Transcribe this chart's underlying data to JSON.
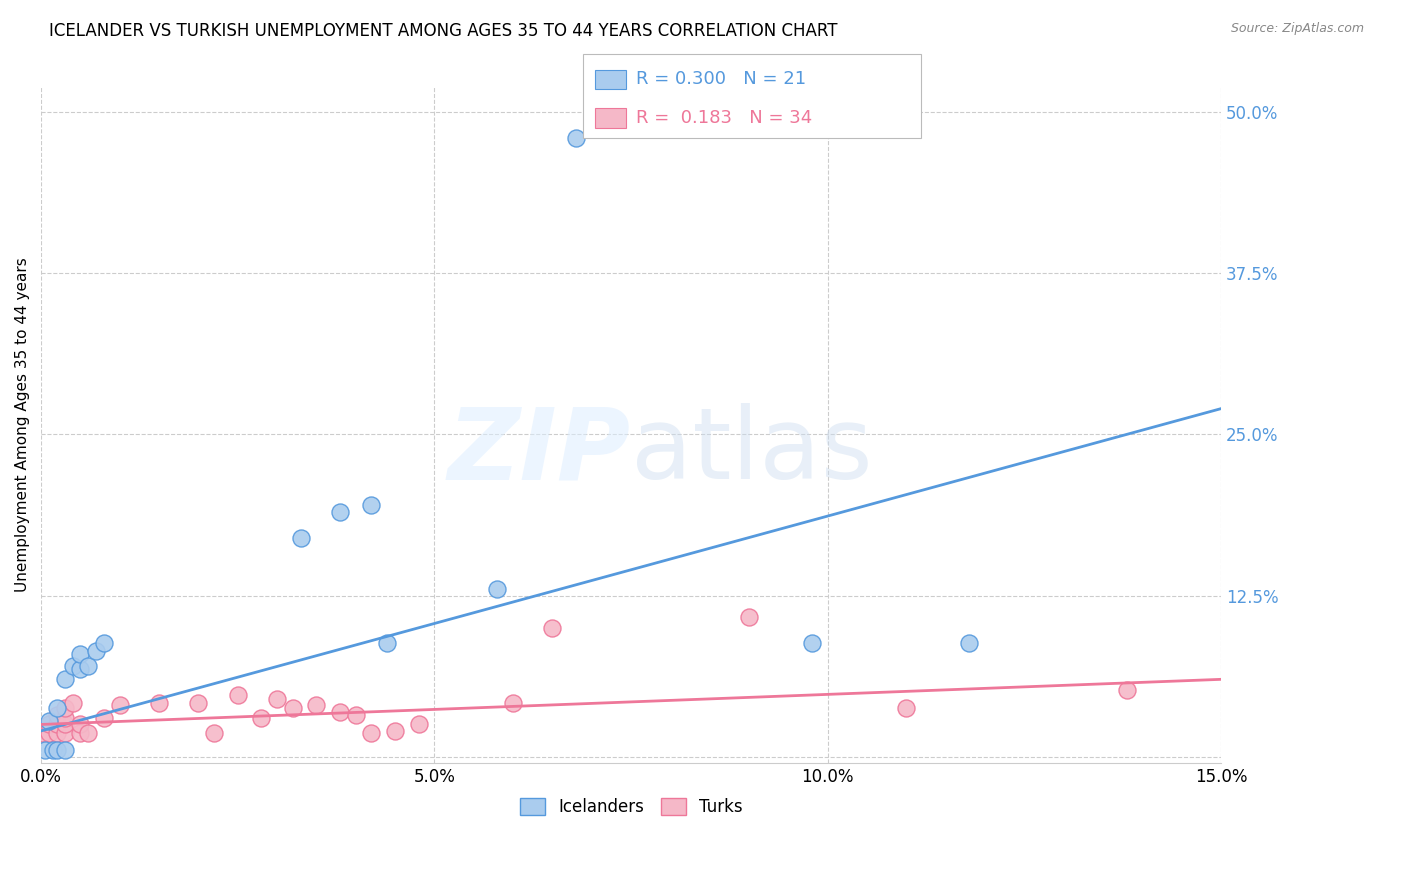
{
  "title": "ICELANDER VS TURKISH UNEMPLOYMENT AMONG AGES 35 TO 44 YEARS CORRELATION CHART",
  "source": "Source: ZipAtlas.com",
  "ylabel": "Unemployment Among Ages 35 to 44 years",
  "xlim": [
    0,
    0.15
  ],
  "ylim": [
    -0.005,
    0.52
  ],
  "yticks": [
    0.0,
    0.125,
    0.25,
    0.375,
    0.5
  ],
  "ytick_labels": [
    "",
    "12.5%",
    "25.0%",
    "37.5%",
    "50.0%"
  ],
  "xticks": [
    0.0,
    0.05,
    0.1,
    0.15
  ],
  "xtick_labels": [
    "0.0%",
    "5.0%",
    "10.0%",
    "15.0%"
  ],
  "icelanders_x": [
    0.0005,
    0.001,
    0.0015,
    0.002,
    0.002,
    0.003,
    0.003,
    0.004,
    0.005,
    0.005,
    0.006,
    0.007,
    0.008,
    0.033,
    0.038,
    0.042,
    0.044,
    0.058,
    0.068,
    0.098,
    0.118
  ],
  "icelanders_y": [
    0.005,
    0.028,
    0.005,
    0.005,
    0.038,
    0.06,
    0.005,
    0.07,
    0.068,
    0.08,
    0.07,
    0.082,
    0.088,
    0.17,
    0.19,
    0.195,
    0.088,
    0.13,
    0.48,
    0.088,
    0.088
  ],
  "turks_x": [
    0.0002,
    0.001,
    0.001,
    0.002,
    0.002,
    0.002,
    0.003,
    0.003,
    0.003,
    0.003,
    0.004,
    0.005,
    0.005,
    0.006,
    0.008,
    0.01,
    0.015,
    0.02,
    0.022,
    0.025,
    0.028,
    0.03,
    0.032,
    0.035,
    0.038,
    0.04,
    0.042,
    0.045,
    0.048,
    0.06,
    0.065,
    0.09,
    0.11,
    0.138
  ],
  "turks_y": [
    0.018,
    0.018,
    0.025,
    0.018,
    0.025,
    0.032,
    0.018,
    0.025,
    0.03,
    0.038,
    0.042,
    0.018,
    0.025,
    0.018,
    0.03,
    0.04,
    0.042,
    0.042,
    0.018,
    0.048,
    0.03,
    0.045,
    0.038,
    0.04,
    0.035,
    0.032,
    0.018,
    0.02,
    0.025,
    0.042,
    0.1,
    0.108,
    0.038,
    0.052
  ],
  "iceland_R": 0.3,
  "iceland_N": 21,
  "turk_R": 0.183,
  "turk_N": 34,
  "iceland_color": "#aaccee",
  "turk_color": "#f5b8c8",
  "iceland_line_color": "#5599dd",
  "turk_line_color": "#ee7799",
  "iceland_line_x": [
    0.0,
    0.15
  ],
  "iceland_line_y": [
    0.02,
    0.27
  ],
  "turk_line_x": [
    0.0,
    0.15
  ],
  "turk_line_y": [
    0.025,
    0.06
  ],
  "background_color": "#ffffff",
  "grid_color": "#cccccc",
  "title_fontsize": 12,
  "label_fontsize": 11,
  "tick_fontsize": 12
}
